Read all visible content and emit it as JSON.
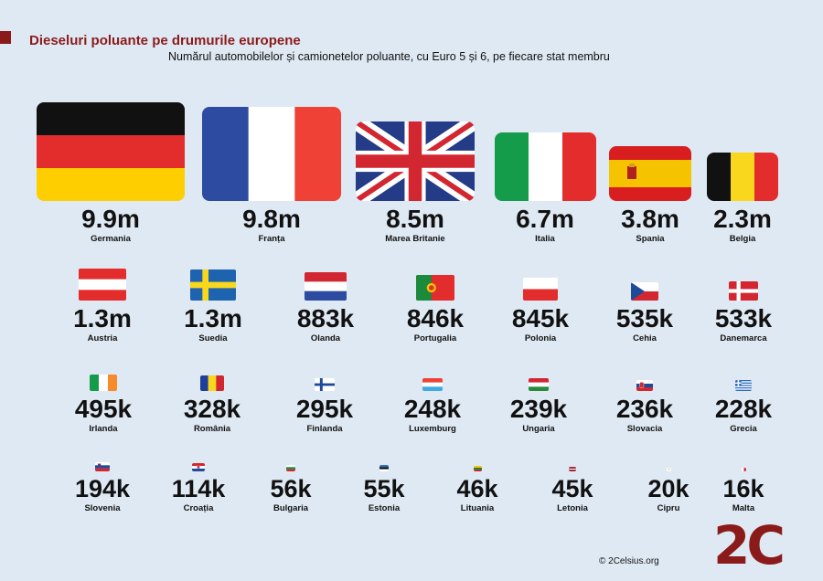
{
  "header": {
    "title": "Dieseluri poluante pe drumurile europene",
    "subtitle": "Numărul automobilelor și camionetelor poluante, cu Euro 5 și 6, pe fiecare stat membru"
  },
  "chart_data": {
    "type": "table",
    "title": "Dieseluri poluante pe drumurile europene",
    "subtitle": "Numărul automobilelor și camionetelor poluante, cu Euro 5 și 6, pe fiecare stat membru",
    "categories": [
      "Germania",
      "Franța",
      "Marea Britanie",
      "Italia",
      "Spania",
      "Belgia",
      "Austria",
      "Suedia",
      "Olanda",
      "Portugalia",
      "Polonia",
      "Cehia",
      "Danemarca",
      "Irlanda",
      "România",
      "Finlanda",
      "Luxemburg",
      "Ungaria",
      "Slovacia",
      "Grecia",
      "Slovenia",
      "Croația",
      "Bulgaria",
      "Estonia",
      "Lituania",
      "Letonia",
      "Cipru",
      "Malta"
    ],
    "values": [
      9900000,
      9800000,
      8500000,
      6700000,
      3800000,
      2300000,
      1300000,
      1300000,
      883000,
      846000,
      845000,
      535000,
      533000,
      495000,
      328000,
      295000,
      248000,
      239000,
      236000,
      228000,
      194000,
      114000,
      56000,
      55000,
      46000,
      45000,
      20000,
      16000
    ],
    "labels": [
      "9.9m",
      "9.8m",
      "8.5m",
      "6.7m",
      "3.8m",
      "2.3m",
      "1.3m",
      "1.3m",
      "883k",
      "846k",
      "845k",
      "535k",
      "533k",
      "495k",
      "328k",
      "295k",
      "248k",
      "239k",
      "236k",
      "228k",
      "194k",
      "114k",
      "56k",
      "55k",
      "46k",
      "45k",
      "20k",
      "16k"
    ]
  },
  "footer": {
    "credit": "© 2Celsius.org",
    "logo": "2C"
  },
  "colors": {
    "accent": "#8b1a1a",
    "background": "#dfe9f3"
  }
}
